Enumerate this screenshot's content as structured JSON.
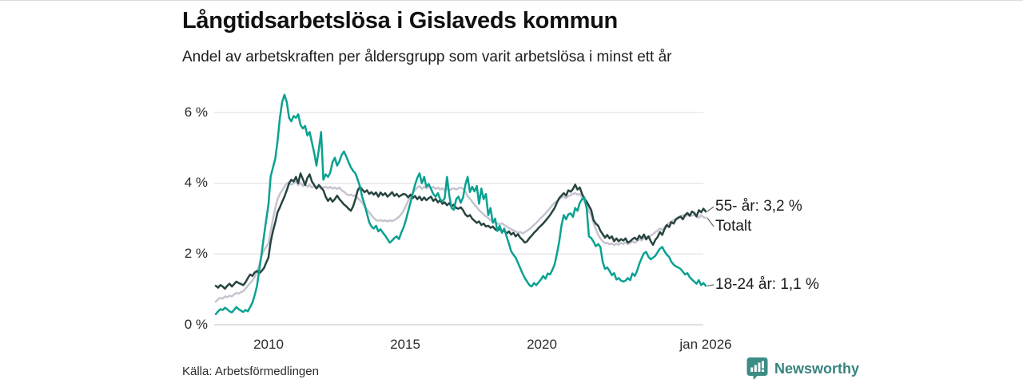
{
  "header": {
    "title": "Långtidsarbetslösa i Gislaveds kommun",
    "subtitle": "Andel av arbetskraften per åldersgrupp som varit arbetslösa i minst ett år"
  },
  "footer": {
    "source": "Källa: Arbetsförmedlingen",
    "brand": "Newsworthy",
    "brand_icon": "speech-bubble-bar-chart-icon",
    "brand_color": "#38837e"
  },
  "colors": {
    "series_18_24": "#0aa191",
    "series_55_plus": "#274540",
    "series_total": "#c6c4d0",
    "gridline": "#e5e5e9",
    "axisline": "#cfcfd4",
    "connector": "#6b6b6b"
  },
  "chart_data": {
    "type": "line",
    "title": "Långtidsarbetslösa i Gislaveds kommun",
    "subtitle": "Andel av arbetskraften per åldersgrupp som varit arbetslösa i minst ett år",
    "unit": "% av arbetskraften",
    "x_start": "2008-02",
    "x_end": "2026-01",
    "x_interval": "monthly",
    "grid": true,
    "legend_position": "end-of-line-labels",
    "ylim": [
      0,
      6.6
    ],
    "y_ticks": [
      {
        "label": "6 %",
        "value": 6
      },
      {
        "label": "4 %",
        "value": 4
      },
      {
        "label": "2 %",
        "value": 2
      },
      {
        "label": "0 %",
        "value": 0
      }
    ],
    "x_ticks": [
      {
        "label": "2010",
        "year": 2010
      },
      {
        "label": "2015",
        "year": 2015
      },
      {
        "label": "2020",
        "year": 2020
      },
      {
        "label": "jan 2026",
        "year": 2026
      }
    ],
    "annotations": [
      {
        "label": "55- år: 3,2 %",
        "series": "55- år",
        "value": 3.2
      },
      {
        "label": "Totalt",
        "series": "Totalt"
      },
      {
        "label": "18-24 år: 1,1 %",
        "series": "18-24 år",
        "value": 1.1
      }
    ],
    "series": [
      {
        "name": "Totalt",
        "color": "#c6c4d0",
        "values": [
          0.65,
          0.72,
          0.76,
          0.74,
          0.8,
          0.78,
          0.82,
          0.8,
          0.86,
          0.9,
          0.88,
          0.92,
          0.95,
          1.02,
          1.1,
          1.18,
          1.25,
          1.35,
          1.5,
          1.7,
          1.95,
          2.1,
          2.2,
          2.3,
          2.65,
          3.0,
          3.3,
          3.55,
          3.7,
          3.8,
          3.9,
          4.0,
          4.02,
          3.96,
          4.0,
          4.05,
          3.95,
          4.02,
          3.92,
          3.98,
          3.9,
          3.95,
          3.88,
          3.92,
          3.85,
          3.9,
          3.84,
          3.88,
          3.9,
          3.86,
          3.9,
          3.85,
          3.88,
          3.84,
          3.88,
          3.8,
          3.76,
          3.7,
          3.66,
          3.68,
          3.64,
          3.66,
          3.58,
          3.52,
          3.45,
          3.35,
          3.26,
          3.18,
          3.1,
          3.02,
          2.96,
          2.94,
          2.96,
          2.93,
          2.95,
          2.92,
          2.95,
          2.93,
          2.96,
          3.0,
          3.05,
          3.12,
          3.22,
          3.35,
          3.5,
          3.62,
          3.72,
          3.8,
          3.88,
          3.92,
          3.84,
          3.9,
          3.85,
          3.92,
          3.86,
          3.9,
          3.84,
          3.88,
          3.82,
          3.86,
          3.8,
          3.85,
          3.8,
          3.84,
          3.86,
          3.82,
          3.86,
          3.88,
          3.84,
          3.78,
          3.64,
          3.56,
          3.48,
          3.4,
          3.32,
          3.24,
          3.18,
          3.12,
          3.06,
          3.02,
          2.96,
          2.92,
          2.9,
          2.87,
          2.84,
          2.87,
          2.82,
          2.78,
          2.74,
          2.7,
          2.67,
          2.64,
          2.6,
          2.62,
          2.58,
          2.62,
          2.66,
          2.7,
          2.76,
          2.82,
          2.88,
          2.95,
          3.02,
          3.08,
          3.15,
          3.22,
          3.3,
          3.38,
          3.45,
          3.5,
          3.55,
          3.6,
          3.62,
          3.58,
          3.64,
          3.66,
          3.7,
          3.72,
          3.68,
          3.7,
          3.6,
          3.48,
          3.35,
          3.22,
          3.1,
          2.88,
          2.7,
          2.55,
          2.44,
          2.36,
          2.3,
          2.32,
          2.27,
          2.3,
          2.25,
          2.3,
          2.26,
          2.32,
          2.28,
          2.34,
          2.28,
          2.32,
          2.36,
          2.32,
          2.36,
          2.42,
          2.38,
          2.46,
          2.4,
          2.48,
          2.52,
          2.56,
          2.62,
          2.66,
          2.72,
          2.68,
          2.76,
          2.82,
          2.88,
          2.92,
          2.96,
          3.0,
          3.04,
          3.06,
          3.1,
          3.06,
          3.1,
          3.12,
          3.08,
          3.12,
          3.06,
          3.02,
          3.1,
          3.04,
          3.02
        ]
      },
      {
        "name": "55- år",
        "color": "#274540",
        "values": [
          1.1,
          1.05,
          1.12,
          1.08,
          1.02,
          1.1,
          1.16,
          1.08,
          1.15,
          1.22,
          1.18,
          1.15,
          1.12,
          1.2,
          1.32,
          1.42,
          1.38,
          1.48,
          1.52,
          1.45,
          1.52,
          1.6,
          1.75,
          1.9,
          2.35,
          2.65,
          2.9,
          3.18,
          3.32,
          3.48,
          3.62,
          3.8,
          4.0,
          4.1,
          4.05,
          4.18,
          4.0,
          4.28,
          4.12,
          3.95,
          4.15,
          4.25,
          4.05,
          3.95,
          3.85,
          3.95,
          3.88,
          3.8,
          3.62,
          3.5,
          3.58,
          3.48,
          3.55,
          3.65,
          3.55,
          3.48,
          3.4,
          3.35,
          3.28,
          3.22,
          3.35,
          3.55,
          3.8,
          3.9,
          3.82,
          3.75,
          3.8,
          3.7,
          3.75,
          3.68,
          3.74,
          3.62,
          3.74,
          3.66,
          3.72,
          3.62,
          3.68,
          3.75,
          3.64,
          3.7,
          3.62,
          3.66,
          3.7,
          3.68,
          3.6,
          3.68,
          3.58,
          3.64,
          3.55,
          3.62,
          3.52,
          3.6,
          3.52,
          3.58,
          3.62,
          3.5,
          3.56,
          3.46,
          3.52,
          3.42,
          3.46,
          3.38,
          3.44,
          3.34,
          3.4,
          3.3,
          3.28,
          3.32,
          3.24,
          3.12,
          3.06,
          3.1,
          3.0,
          2.94,
          2.88,
          2.92,
          2.82,
          2.86,
          2.78,
          2.8,
          2.74,
          2.78,
          2.7,
          2.66,
          2.72,
          2.62,
          2.66,
          2.58,
          2.64,
          2.55,
          2.6,
          2.5,
          2.56,
          2.46,
          2.4,
          2.32,
          2.36,
          2.45,
          2.52,
          2.6,
          2.66,
          2.74,
          2.8,
          2.86,
          2.94,
          3.02,
          3.1,
          3.2,
          3.3,
          3.45,
          3.58,
          3.65,
          3.72,
          3.65,
          3.8,
          3.76,
          3.84,
          3.96,
          3.82,
          3.88,
          3.7,
          3.56,
          3.48,
          3.36,
          3.24,
          2.96,
          2.86,
          2.8,
          2.66,
          2.56,
          2.46,
          2.54,
          2.44,
          2.5,
          2.36,
          2.44,
          2.36,
          2.42,
          2.38,
          2.44,
          2.32,
          2.36,
          2.42,
          2.46,
          2.4,
          2.52,
          2.44,
          2.55,
          2.42,
          2.5,
          2.36,
          2.26,
          2.4,
          2.48,
          2.62,
          2.54,
          2.7,
          2.82,
          2.76,
          2.9,
          2.86,
          2.98,
          3.02,
          3.06,
          2.98,
          3.1,
          3.16,
          3.08,
          3.2,
          3.16,
          3.06,
          3.24,
          3.18,
          3.28,
          3.2
        ]
      },
      {
        "name": "18-24 år",
        "color": "#0aa191",
        "values": [
          0.3,
          0.38,
          0.44,
          0.42,
          0.48,
          0.44,
          0.38,
          0.35,
          0.42,
          0.5,
          0.44,
          0.4,
          0.36,
          0.42,
          0.38,
          0.5,
          0.62,
          0.84,
          1.1,
          1.55,
          2.0,
          2.5,
          2.95,
          3.4,
          4.2,
          4.45,
          4.7,
          5.2,
          5.85,
          6.3,
          6.5,
          6.3,
          5.85,
          5.75,
          5.9,
          5.85,
          5.95,
          5.65,
          5.55,
          5.62,
          5.35,
          5.45,
          5.15,
          4.85,
          4.5,
          4.95,
          5.45,
          4.1,
          4.25,
          4.18,
          4.3,
          4.6,
          4.72,
          4.5,
          4.62,
          4.8,
          4.9,
          4.75,
          4.6,
          4.45,
          4.35,
          4.28,
          4.1,
          3.9,
          3.6,
          3.4,
          3.15,
          2.9,
          2.78,
          2.72,
          2.8,
          2.64,
          2.7,
          2.6,
          2.52,
          2.42,
          2.32,
          2.38,
          2.45,
          2.5,
          2.42,
          2.6,
          2.75,
          2.95,
          3.2,
          3.45,
          3.7,
          3.95,
          4.15,
          4.28,
          4.0,
          4.18,
          3.9,
          3.98,
          3.84,
          3.7,
          3.62,
          3.72,
          3.55,
          3.48,
          3.58,
          4.18,
          3.65,
          3.3,
          3.25,
          3.55,
          3.62,
          3.45,
          3.6,
          3.95,
          4.18,
          3.75,
          3.9,
          3.77,
          3.92,
          3.42,
          3.85,
          3.55,
          3.7,
          3.1,
          3.3,
          2.88,
          3.0,
          2.65,
          2.8,
          2.6,
          2.72,
          2.5,
          2.3,
          2.08,
          1.98,
          1.9,
          1.75,
          1.6,
          1.45,
          1.32,
          1.22,
          1.12,
          1.08,
          1.18,
          1.12,
          1.2,
          1.28,
          1.38,
          1.3,
          1.45,
          1.42,
          1.55,
          1.7,
          2.0,
          2.35,
          2.8,
          3.1,
          2.98,
          3.12,
          3.15,
          3.05,
          3.3,
          3.22,
          3.45,
          3.55,
          3.6,
          3.3,
          2.5,
          2.45,
          2.35,
          2.22,
          2.28,
          2.2,
          1.78,
          1.58,
          1.62,
          1.52,
          1.4,
          1.46,
          1.28,
          1.32,
          1.25,
          1.22,
          1.25,
          1.32,
          1.26,
          1.45,
          1.38,
          1.52,
          1.72,
          1.88,
          2.02,
          2.06,
          1.92,
          1.85,
          1.9,
          1.95,
          2.05,
          2.15,
          2.2,
          2.08,
          1.98,
          1.92,
          1.78,
          1.7,
          1.65,
          1.62,
          1.58,
          1.5,
          1.42,
          1.46,
          1.35,
          1.28,
          1.22,
          1.16,
          1.26,
          1.12,
          1.18,
          1.1
        ]
      }
    ]
  }
}
